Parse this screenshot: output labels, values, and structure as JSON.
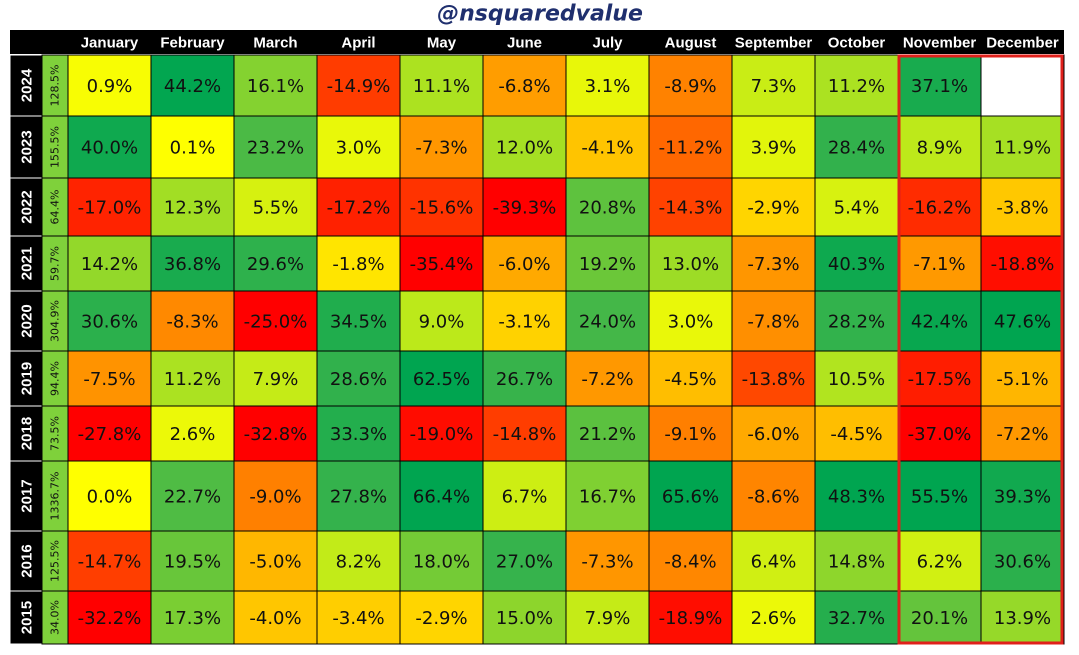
{
  "chart_data": {
    "type": "heatmap",
    "title": "@nsquaredvalue",
    "categories": [
      "January",
      "February",
      "March",
      "April",
      "May",
      "June",
      "July",
      "August",
      "September",
      "October",
      "November",
      "December"
    ],
    "rows": [
      "2024",
      "2023",
      "2022",
      "2021",
      "2020",
      "2019",
      "2018",
      "2017",
      "2016",
      "2015"
    ],
    "totals": [
      128.5,
      155.5,
      64.4,
      59.7,
      304.9,
      94.4,
      73.5,
      1336.7,
      125.5,
      34.0
    ],
    "total_labels": [
      "128.5%",
      "155.5%",
      "64.4%",
      "59.7%",
      "304.9%",
      "94.4%",
      "73.5%",
      "1336.7%",
      "125.5%",
      "34.0%"
    ],
    "values": [
      [
        0.9,
        44.2,
        16.1,
        -14.9,
        11.1,
        -6.8,
        3.1,
        -8.9,
        7.3,
        11.2,
        37.1,
        null
      ],
      [
        40.0,
        0.1,
        23.2,
        3.0,
        -7.3,
        12.0,
        -4.1,
        -11.2,
        3.9,
        28.4,
        8.9,
        11.9
      ],
      [
        -17.0,
        12.3,
        5.5,
        -17.2,
        -15.6,
        -39.3,
        20.8,
        -14.3,
        -2.9,
        5.4,
        -16.2,
        -3.8
      ],
      [
        14.2,
        36.8,
        29.6,
        -1.8,
        -35.4,
        -6.0,
        19.2,
        13.0,
        -7.3,
        40.3,
        -7.1,
        -18.8
      ],
      [
        30.6,
        -8.3,
        -25.0,
        34.5,
        9.0,
        -3.1,
        24.0,
        3.0,
        -7.8,
        28.2,
        42.4,
        47.6
      ],
      [
        -7.5,
        11.2,
        7.9,
        28.6,
        62.5,
        26.7,
        -7.2,
        -4.5,
        -13.8,
        10.5,
        -17.5,
        -5.1
      ],
      [
        -27.8,
        2.6,
        -32.8,
        33.3,
        -19.0,
        -14.8,
        21.2,
        -9.1,
        -6.0,
        -4.5,
        -37.0,
        -7.2
      ],
      [
        0.0,
        22.7,
        -9.0,
        27.8,
        66.4,
        6.7,
        16.7,
        65.6,
        -8.6,
        48.3,
        55.5,
        39.3
      ],
      [
        -14.7,
        19.5,
        -5.0,
        8.2,
        18.0,
        27.0,
        -7.3,
        -8.4,
        6.4,
        14.8,
        6.2,
        30.6
      ],
      [
        -32.2,
        17.3,
        -4.0,
        -3.4,
        -2.9,
        15.0,
        7.9,
        -18.9,
        2.6,
        32.7,
        20.1,
        13.9
      ]
    ],
    "value_labels": [
      [
        "0.9%",
        "44.2%",
        "16.1%",
        "-14.9%",
        "11.1%",
        "-6.8%",
        "3.1%",
        "-8.9%",
        "7.3%",
        "11.2%",
        "37.1%",
        null
      ],
      [
        "40.0%",
        "0.1%",
        "23.2%",
        "3.0%",
        "-7.3%",
        "12.0%",
        "-4.1%",
        "-11.2%",
        "3.9%",
        "28.4%",
        "8.9%",
        "11.9%"
      ],
      [
        "-17.0%",
        "12.3%",
        "5.5%",
        "-17.2%",
        "-15.6%",
        "-39.3%",
        "20.8%",
        "-14.3%",
        "-2.9%",
        "5.4%",
        "-16.2%",
        "-3.8%"
      ],
      [
        "14.2%",
        "36.8%",
        "29.6%",
        "-1.8%",
        "-35.4%",
        "-6.0%",
        "19.2%",
        "13.0%",
        "-7.3%",
        "40.3%",
        "-7.1%",
        "-18.8%"
      ],
      [
        "30.6%",
        "-8.3%",
        "-25.0%",
        "34.5%",
        "9.0%",
        "-3.1%",
        "24.0%",
        "3.0%",
        "-7.8%",
        "28.2%",
        "42.4%",
        "47.6%"
      ],
      [
        "-7.5%",
        "11.2%",
        "7.9%",
        "28.6%",
        "62.5%",
        "26.7%",
        "-7.2%",
        "-4.5%",
        "-13.8%",
        "10.5%",
        "-17.5%",
        "-5.1%"
      ],
      [
        "-27.8%",
        "2.6%",
        "-32.8%",
        "33.3%",
        "-19.0%",
        "-14.8%",
        "21.2%",
        "-9.1%",
        "-6.0%",
        "-4.5%",
        "-37.0%",
        "-7.2%"
      ],
      [
        "0.0%",
        "22.7%",
        "-9.0%",
        "27.8%",
        "66.4%",
        "6.7%",
        "16.7%",
        "65.6%",
        "-8.6%",
        "48.3%",
        "55.5%",
        "39.3%"
      ],
      [
        "-14.7%",
        "19.5%",
        "-5.0%",
        "8.2%",
        "18.0%",
        "27.0%",
        "-7.3%",
        "-8.4%",
        "6.4%",
        "14.8%",
        "6.2%",
        "30.6%"
      ],
      [
        "-32.2%",
        "17.3%",
        "-4.0%",
        "-3.4%",
        "-2.9%",
        "15.0%",
        "7.9%",
        "-18.9%",
        "2.6%",
        "32.7%",
        "20.1%",
        "13.9%"
      ]
    ],
    "highlight_color": "#e0201b"
  }
}
